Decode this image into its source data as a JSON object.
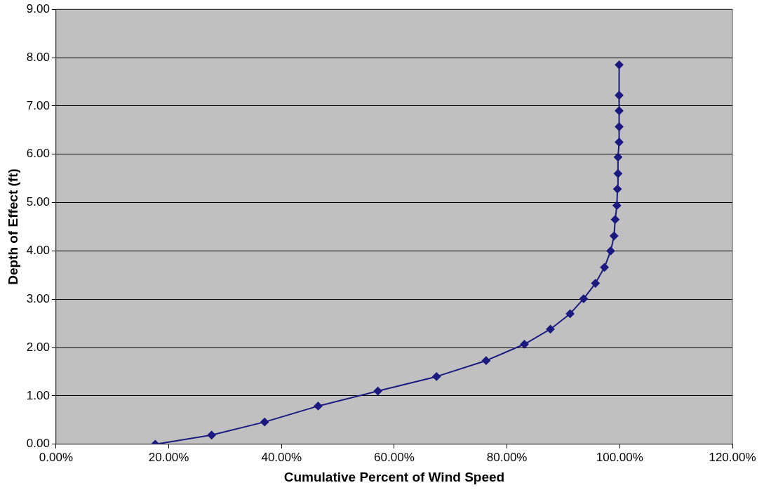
{
  "chart_data": {
    "type": "line",
    "xlabel": "Cumulative Percent of Wind Speed",
    "ylabel": "Depth of Effect (ft)",
    "xlim": [
      0,
      120
    ],
    "xticks": [
      {
        "value": 0,
        "label": "0.00%"
      },
      {
        "value": 20,
        "label": "20.00%"
      },
      {
        "value": 40,
        "label": "40.00%"
      },
      {
        "value": 60,
        "label": "60.00%"
      },
      {
        "value": 80,
        "label": "80.00%"
      },
      {
        "value": 100,
        "label": "100.00%"
      },
      {
        "value": 120,
        "label": "120.00%"
      }
    ],
    "ylim": [
      0,
      9
    ],
    "yticks": [
      {
        "value": 0,
        "label": "0.00"
      },
      {
        "value": 1,
        "label": "1.00"
      },
      {
        "value": 2,
        "label": "2.00"
      },
      {
        "value": 3,
        "label": "3.00"
      },
      {
        "value": 4,
        "label": "4.00"
      },
      {
        "value": 5,
        "label": "5.00"
      },
      {
        "value": 6,
        "label": "6.00"
      },
      {
        "value": 7,
        "label": "7.00"
      },
      {
        "value": 8,
        "label": "8.00"
      },
      {
        "value": 9,
        "label": "9.00"
      }
    ],
    "grid": "y",
    "legend": false,
    "marker": "diamond",
    "line_style": "solid",
    "series": [
      {
        "color": "#1a1a80",
        "x": [
          17.6,
          27.6,
          37.0,
          46.5,
          57.1,
          67.5,
          76.3,
          83.1,
          87.7,
          91.2,
          93.6,
          95.7,
          97.3,
          98.4,
          99.0,
          99.2,
          99.5,
          99.6,
          99.7,
          99.7,
          99.9,
          99.9,
          99.9,
          99.9,
          99.9
        ],
        "values": [
          0,
          0.19,
          0.46,
          0.79,
          1.1,
          1.4,
          1.73,
          2.07,
          2.38,
          2.7,
          3.01,
          3.33,
          3.66,
          4.0,
          4.31,
          4.65,
          4.94,
          5.28,
          5.6,
          5.94,
          6.25,
          6.57,
          6.9,
          7.22,
          7.85
        ]
      }
    ]
  }
}
